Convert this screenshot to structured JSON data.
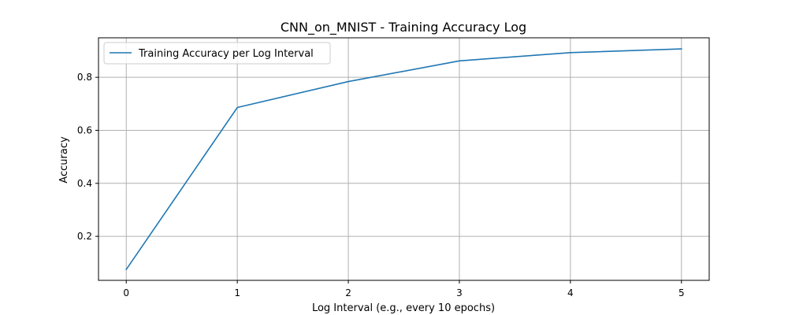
{
  "chart_data": {
    "type": "line",
    "title": "CNN_on_MNIST - Training Accuracy Log",
    "xlabel": "Log Interval (e.g., every 10 epochs)",
    "ylabel": "Accuracy",
    "x": [
      0,
      1,
      2,
      3,
      4,
      5
    ],
    "series": [
      {
        "name": "Training Accuracy per Log Interval",
        "color": "#1f77b4",
        "values": [
          0.075,
          0.686,
          0.784,
          0.862,
          0.893,
          0.907
        ]
      }
    ],
    "xlim": [
      -0.25,
      5.25
    ],
    "ylim": [
      0.034,
      0.949
    ],
    "xticks": [
      "0",
      "1",
      "2",
      "3",
      "4",
      "5"
    ],
    "yticks": [
      "0.2",
      "0.4",
      "0.6",
      "0.8"
    ],
    "grid": true,
    "legend_position": "top-left"
  }
}
